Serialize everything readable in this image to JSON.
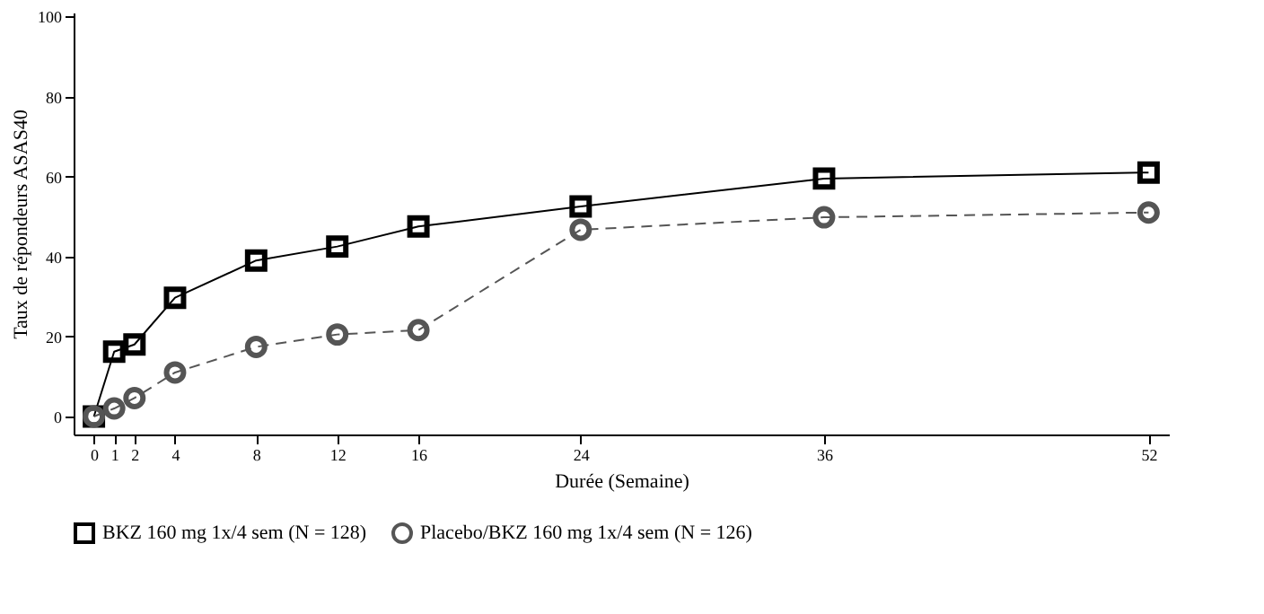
{
  "chart_data": {
    "type": "line",
    "xlabel": "Durée (Semaine)",
    "ylabel": "Taux de répondeurs ASAS40",
    "xlim": [
      -1,
      53
    ],
    "ylim": [
      -4.5,
      101
    ],
    "xticks": [
      0,
      1,
      2,
      4,
      8,
      12,
      16,
      24,
      36,
      52
    ],
    "yticks": [
      0,
      20,
      40,
      60,
      80,
      100
    ],
    "grid": false,
    "legend": "bottom",
    "series": [
      {
        "name": "BKZ 160 mg 1x/4 sem (N = 128)",
        "color": "#000000",
        "marker": "square",
        "line_style": "solid",
        "x": [
          0,
          1,
          2,
          4,
          8,
          12,
          16,
          24,
          36,
          52
        ],
        "values": [
          0,
          16.2,
          18,
          29.7,
          39,
          42.5,
          47.5,
          52.5,
          59.5,
          61
        ]
      },
      {
        "name": "Placebo/BKZ 160 mg 1x/4 sem (N = 126)",
        "color": "#555555",
        "marker": "circle",
        "line_style": "dashed",
        "x": [
          0,
          1,
          2,
          4,
          8,
          12,
          16,
          24,
          36,
          52
        ],
        "values": [
          0,
          2,
          4.6,
          11,
          17.4,
          20.5,
          21.6,
          46.7,
          49.8,
          51
        ]
      }
    ]
  }
}
